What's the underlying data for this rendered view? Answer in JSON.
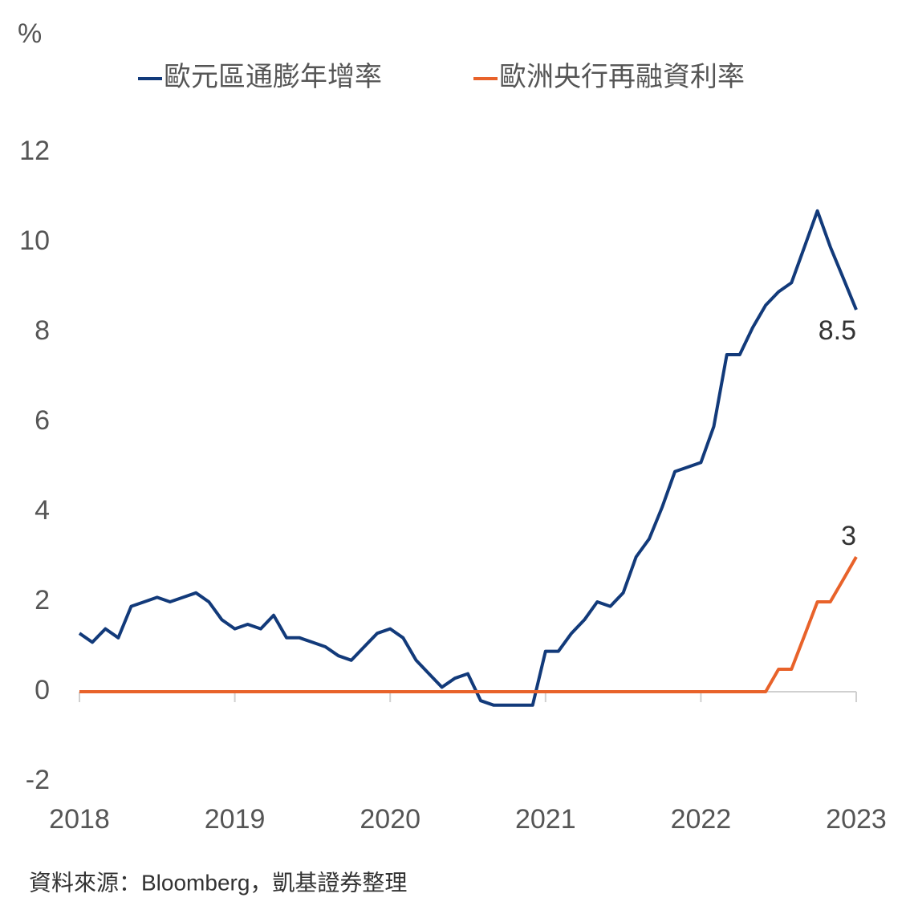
{
  "chart_data": {
    "type": "line",
    "y_label": "%",
    "source": "資料來源：Bloomberg，凱基證券整理",
    "x": [
      2018,
      2018.083,
      2018.167,
      2018.25,
      2018.333,
      2018.417,
      2018.5,
      2018.583,
      2018.667,
      2018.75,
      2018.833,
      2018.917,
      2019,
      2019.083,
      2019.167,
      2019.25,
      2019.333,
      2019.417,
      2019.5,
      2019.583,
      2019.667,
      2019.75,
      2019.833,
      2019.917,
      2020,
      2020.083,
      2020.167,
      2020.25,
      2020.333,
      2020.417,
      2020.5,
      2020.583,
      2020.667,
      2020.75,
      2020.833,
      2020.917,
      2021,
      2021.083,
      2021.167,
      2021.25,
      2021.333,
      2021.417,
      2021.5,
      2021.583,
      2021.667,
      2021.75,
      2021.833,
      2021.917,
      2022,
      2022.083,
      2022.167,
      2022.25,
      2022.333,
      2022.417,
      2022.5,
      2022.583,
      2022.667,
      2022.75,
      2022.833,
      2022.917,
      2023
    ],
    "series": [
      {
        "name": "歐元區通膨年增率",
        "color": "#123a7a",
        "values": [
          1.3,
          1.1,
          1.4,
          1.2,
          1.9,
          2.0,
          2.1,
          2.0,
          2.1,
          2.2,
          2.0,
          1.6,
          1.4,
          1.5,
          1.4,
          1.7,
          1.2,
          1.2,
          1.1,
          1.0,
          0.8,
          0.7,
          1.0,
          1.3,
          1.4,
          1.2,
          0.7,
          0.4,
          0.1,
          0.3,
          0.4,
          -0.2,
          -0.3,
          -0.3,
          -0.3,
          -0.3,
          0.9,
          0.9,
          1.3,
          1.6,
          2.0,
          1.9,
          2.2,
          3.0,
          3.4,
          4.1,
          4.9,
          5.0,
          5.1,
          5.9,
          7.5,
          7.5,
          8.1,
          8.6,
          8.9,
          9.1,
          9.9,
          10.7,
          9.9,
          9.2,
          8.5
        ]
      },
      {
        "name": "歐洲央行再融資利率",
        "color": "#e8622a",
        "values": [
          0,
          0,
          0,
          0,
          0,
          0,
          0,
          0,
          0,
          0,
          0,
          0,
          0,
          0,
          0,
          0,
          0,
          0,
          0,
          0,
          0,
          0,
          0,
          0,
          0,
          0,
          0,
          0,
          0,
          0,
          0,
          0,
          0,
          0,
          0,
          0,
          0,
          0,
          0,
          0,
          0,
          0,
          0,
          0,
          0,
          0,
          0,
          0,
          0,
          0,
          0,
          0,
          0,
          0,
          0.5,
          0.5,
          1.25,
          2.0,
          2.0,
          2.5,
          3
        ]
      }
    ],
    "xlim": [
      2018,
      2023
    ],
    "xticks": [
      2018,
      2019,
      2020,
      2021,
      2022,
      2023
    ],
    "ylim": [
      -2,
      12
    ],
    "yticks": [
      -2,
      0,
      2,
      4,
      6,
      8,
      10,
      12
    ]
  }
}
